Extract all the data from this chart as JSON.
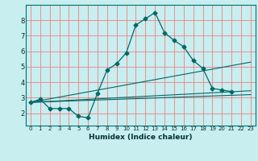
{
  "xlabel": "Humidex (Indice chaleur)",
  "background_color": "#c8eef0",
  "grid_color_h": "#f08080",
  "grid_color_v": "#c8eef0",
  "line_color": "#006868",
  "xlim": [
    -0.5,
    23.5
  ],
  "ylim": [
    1.2,
    9.0
  ],
  "xticks": [
    0,
    1,
    2,
    3,
    4,
    5,
    6,
    7,
    8,
    9,
    10,
    11,
    12,
    13,
    14,
    15,
    16,
    17,
    18,
    19,
    20,
    21,
    22,
    23
  ],
  "yticks": [
    2,
    3,
    4,
    5,
    6,
    7,
    8
  ],
  "figsize": [
    3.2,
    2.0
  ],
  "dpi": 100,
  "main_series_x": [
    0,
    1,
    2,
    3,
    4,
    5,
    6,
    7,
    8,
    9,
    10,
    11,
    12,
    13,
    14,
    15,
    16,
    17,
    18,
    19,
    20,
    21
  ],
  "main_series_y": [
    2.7,
    2.9,
    2.3,
    2.3,
    2.3,
    1.8,
    1.7,
    3.3,
    4.8,
    5.2,
    5.9,
    7.7,
    8.1,
    8.5,
    7.2,
    6.7,
    6.3,
    5.4,
    4.9,
    3.6,
    3.5,
    3.4
  ],
  "trend_lines": [
    {
      "x": [
        0,
        23
      ],
      "y": [
        2.7,
        3.2
      ]
    },
    {
      "x": [
        0,
        23
      ],
      "y": [
        2.7,
        3.45
      ]
    },
    {
      "x": [
        0,
        23
      ],
      "y": [
        2.7,
        5.3
      ]
    }
  ]
}
